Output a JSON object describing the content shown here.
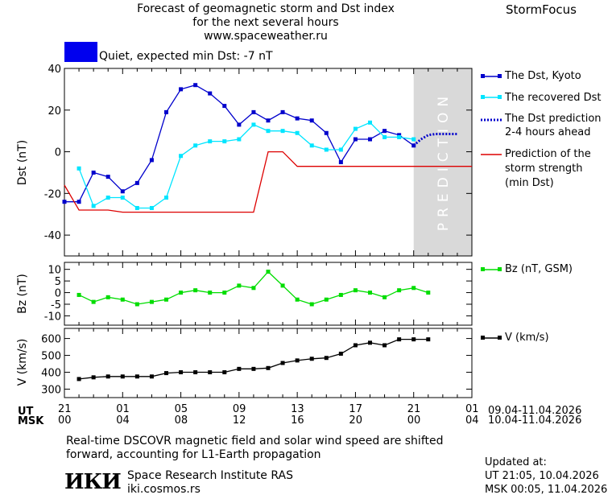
{
  "header": {
    "title_line1": "Forecast of geomagnetic storm and Dst index",
    "title_line2": "for the next several hours",
    "site": "www.spaceweather.ru",
    "brand": "StormFocus"
  },
  "status": {
    "label": "Quiet, expected min Dst: -7 nT",
    "color": "#0000ee"
  },
  "prediction_label": "PREDICTION",
  "legend": {
    "dst_kyoto": "The Dst, Kyoto",
    "recovered": "The recovered Dst",
    "prediction_line1": "The Dst prediction",
    "prediction_line2": "2-4 hours ahead",
    "strength_line1": "Prediction of the",
    "strength_line2": "storm strength",
    "strength_line3": "(min Dst)",
    "bz": "Bz (nT, GSM)",
    "v": "V (km/s)"
  },
  "time_axis": {
    "ut_label": "UT",
    "msk_label": "MSK",
    "ut_ticks": [
      "21",
      "01",
      "05",
      "09",
      "13",
      "17",
      "21",
      "01"
    ],
    "msk_ticks": [
      "00",
      "04",
      "08",
      "12",
      "16",
      "20",
      "00",
      "04"
    ],
    "ut_range": "09.04-11.04.2026",
    "msk_range": "10.04-11.04.2026"
  },
  "footer": {
    "note_line1": "Real-time DSCOVR magnetic field and solar wind speed are shifted",
    "note_line2": "forward, accounting for L1-Earth propagation",
    "org_name": "Space Research Institute RAS",
    "org_site": "iki.cosmos.rs",
    "logo_text": "ИКИ",
    "updated_label": "Updated at:",
    "updated_ut": "UT   21:05, 10.04.2026",
    "updated_msk": "MSK 00:05, 11.04.2026"
  },
  "chart_data": [
    {
      "type": "line",
      "id": "dst",
      "ylabel": "Dst (nT)",
      "ylim": [
        -50,
        40
      ],
      "yticks": [
        40,
        20,
        0,
        -20,
        -40
      ],
      "x_range_hours": [
        -24,
        4
      ],
      "prediction_start_hour": 0,
      "series": [
        {
          "name": "The Dst, Kyoto",
          "color": "#0000cc",
          "x": [
            -24,
            -23,
            -22,
            -21,
            -20,
            -19,
            -18,
            -17,
            -16,
            -15,
            -14,
            -13,
            -12,
            -11,
            -10,
            -9,
            -8,
            -7,
            -6,
            -5,
            -4,
            -3,
            -2,
            -1,
            0
          ],
          "values": [
            -24,
            -24,
            -10,
            -12,
            -19,
            -15,
            -4,
            19,
            30,
            32,
            28,
            22,
            13,
            19,
            15,
            19,
            16,
            15,
            9,
            -5,
            6,
            6,
            10,
            8,
            3
          ]
        },
        {
          "name": "The recovered Dst",
          "color": "#00e5ff",
          "x": [
            -23,
            -22,
            -21,
            -20,
            -19,
            -18,
            -17,
            -16,
            -15,
            -14,
            -13,
            -12,
            -11,
            -10,
            -9,
            -8,
            -7,
            -6,
            -5,
            -4,
            -3,
            -2,
            -1,
            0
          ],
          "values": [
            -8,
            -26,
            -22,
            -22,
            -27,
            -27,
            -22,
            -2,
            3,
            5,
            5,
            6,
            13,
            10,
            10,
            9,
            3,
            1,
            1,
            11,
            14,
            7,
            7,
            6
          ]
        },
        {
          "name": "The Dst prediction 2-4 hours ahead",
          "color": "#0000cc",
          "x": [
            0,
            0.5,
            1,
            1.5,
            2,
            2.5,
            3
          ],
          "values": [
            3,
            6,
            8,
            8.5,
            8.5,
            8.5,
            8.5
          ]
        },
        {
          "name": "Prediction of the storm strength (min Dst)",
          "color": "#dd0000",
          "x": [
            -24,
            -23,
            -21,
            -20,
            -11,
            -10,
            -9,
            -8,
            -7,
            4
          ],
          "values": [
            -16,
            -28,
            -28,
            -29,
            -29,
            0,
            0,
            -7,
            -7,
            -7
          ]
        }
      ]
    },
    {
      "type": "line",
      "id": "bz",
      "ylabel": "Bz (nT)",
      "ylim": [
        -14,
        13
      ],
      "yticks": [
        10,
        5,
        0,
        -5,
        -10
      ],
      "series": [
        {
          "name": "Bz (nT, GSM)",
          "color": "#00dd00",
          "x": [
            -23,
            -22,
            -21,
            -20,
            -19,
            -18,
            -17,
            -16,
            -15,
            -14,
            -13,
            -12,
            -11,
            -10,
            -9,
            -8,
            -7,
            -6,
            -5,
            -4,
            -3,
            -2,
            -1,
            0,
            1
          ],
          "values": [
            -1,
            -4,
            -2,
            -3,
            -5,
            -4,
            -3,
            0,
            1,
            0,
            0,
            3,
            2,
            9,
            3,
            -3,
            -5,
            -3,
            -1,
            1,
            0,
            -2,
            1,
            2,
            0
          ]
        }
      ]
    },
    {
      "type": "line",
      "id": "v",
      "ylabel": "V (km/s)",
      "ylim": [
        250,
        660
      ],
      "yticks": [
        600,
        500,
        400,
        300
      ],
      "series": [
        {
          "name": "V (km/s)",
          "color": "#000000",
          "x": [
            -23,
            -22,
            -21,
            -20,
            -19,
            -18,
            -17,
            -16,
            -15,
            -14,
            -13,
            -12,
            -11,
            -10,
            -9,
            -8,
            -7,
            -6,
            -5,
            -4,
            -3,
            -2,
            -1,
            0,
            1
          ],
          "values": [
            360,
            370,
            375,
            375,
            375,
            375,
            395,
            400,
            400,
            400,
            400,
            420,
            420,
            425,
            455,
            470,
            480,
            485,
            510,
            560,
            575,
            560,
            595,
            595,
            595
          ]
        }
      ]
    }
  ]
}
